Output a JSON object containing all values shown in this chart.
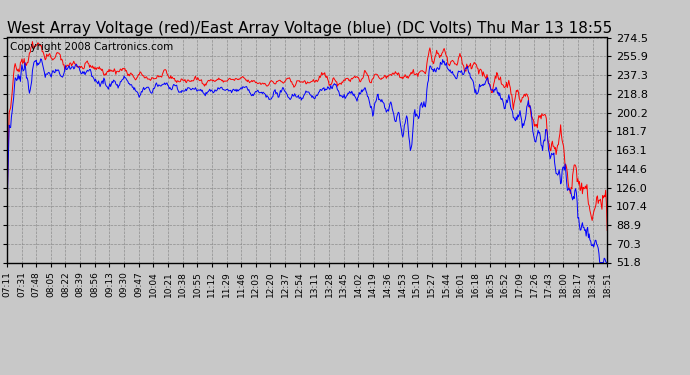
{
  "title": "West Array Voltage (red)/East Array Voltage (blue) (DC Volts) Thu Mar 13 18:55",
  "copyright": "Copyright 2008 Cartronics.com",
  "yticks": [
    51.8,
    70.3,
    88.9,
    107.4,
    126.0,
    144.6,
    163.1,
    181.7,
    200.2,
    218.8,
    237.3,
    255.9,
    274.5
  ],
  "xtick_labels": [
    "07:11",
    "07:31",
    "07:48",
    "08:05",
    "08:22",
    "08:39",
    "08:56",
    "09:13",
    "09:30",
    "09:47",
    "10:04",
    "10:21",
    "10:38",
    "10:55",
    "11:12",
    "11:29",
    "11:46",
    "12:03",
    "12:20",
    "12:37",
    "12:54",
    "13:11",
    "13:28",
    "13:45",
    "14:02",
    "14:19",
    "14:36",
    "14:53",
    "15:10",
    "15:27",
    "15:44",
    "16:01",
    "16:18",
    "16:35",
    "16:52",
    "17:09",
    "17:26",
    "17:43",
    "18:00",
    "18:17",
    "18:34",
    "18:51"
  ],
  "ymin": 51.8,
  "ymax": 274.5,
  "bg_color": "#c8c8c8",
  "plot_bg": "#c8c8c8",
  "red_color": "#ff0000",
  "blue_color": "#0000ff",
  "title_fontsize": 11,
  "copyright_fontsize": 7.5
}
